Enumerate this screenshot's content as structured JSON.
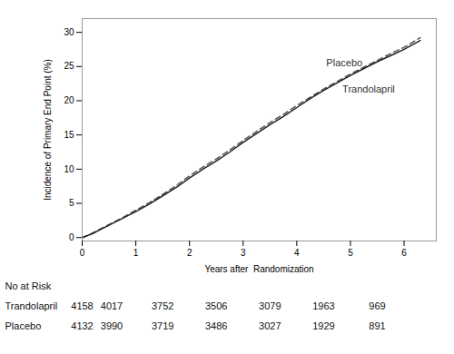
{
  "chart_data": {
    "type": "line",
    "x_label": "Years after  Randomization",
    "y_label": "Incidence of Primary End Point (%)",
    "x": [
      0,
      0.1,
      0.2,
      0.3,
      0.5,
      0.75,
      1.0,
      1.25,
      1.5,
      1.75,
      2.0,
      2.25,
      2.5,
      2.75,
      3.0,
      3.25,
      3.5,
      3.75,
      4.0,
      4.25,
      4.5,
      4.75,
      5.0,
      5.25,
      5.5,
      5.75,
      6.0,
      6.3
    ],
    "series": [
      {
        "name": "Placebo",
        "color": "#555555",
        "line_style": "dashed",
        "values": [
          0,
          0.3,
          0.7,
          1.1,
          1.9,
          2.9,
          4.0,
          5.1,
          6.3,
          7.6,
          9.0,
          10.3,
          11.5,
          12.8,
          14.2,
          15.5,
          16.8,
          18.0,
          19.3,
          20.5,
          21.7,
          22.8,
          23.9,
          24.9,
          25.9,
          26.9,
          27.8,
          29.2
        ]
      },
      {
        "name": "Trandolapril",
        "color": "#222222",
        "line_style": "solid",
        "values": [
          0,
          0.3,
          0.6,
          1.0,
          1.8,
          2.8,
          3.8,
          4.9,
          6.1,
          7.3,
          8.7,
          10.0,
          11.2,
          12.5,
          13.9,
          15.2,
          16.5,
          17.7,
          19.0,
          20.3,
          21.5,
          22.6,
          23.7,
          24.7,
          25.7,
          26.6,
          27.5,
          28.8
        ]
      }
    ],
    "xlim": [
      0,
      6.6
    ],
    "ylim": [
      -0.5,
      32
    ],
    "xticks": [
      0,
      1,
      2,
      3,
      4,
      5,
      6
    ],
    "yticks": [
      0,
      5,
      10,
      15,
      20,
      25,
      30
    ],
    "annotations": [
      {
        "text": "Placebo",
        "x": 4.55,
        "y": 25.0
      },
      {
        "text": "Trandolapril",
        "x": 4.85,
        "y": 22.2
      }
    ],
    "risk_table": {
      "title": "No at Risk",
      "rows": [
        {
          "name": "Trandolapril",
          "values": [
            4158,
            4017,
            3752,
            3506,
            3079,
            1963,
            969
          ]
        },
        {
          "name": "Placebo",
          "values": [
            4132,
            3990,
            3719,
            3486,
            3027,
            1929,
            891
          ]
        }
      ]
    }
  }
}
